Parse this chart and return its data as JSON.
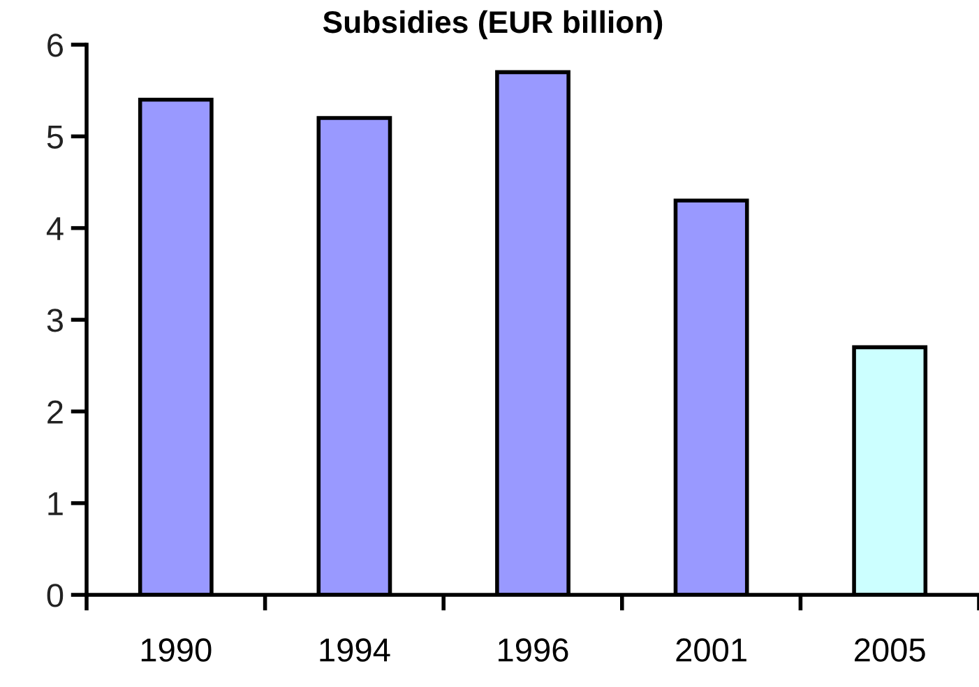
{
  "chart_data": {
    "type": "bar",
    "title": "Subsidies (EUR billion)",
    "categories": [
      "1990",
      "1994",
      "1996",
      "2001",
      "2005"
    ],
    "values": [
      5.4,
      5.2,
      5.7,
      4.3,
      2.7
    ],
    "colors": [
      "#9999ff",
      "#9999ff",
      "#9999ff",
      "#9999ff",
      "#ccffff"
    ],
    "ylim": [
      0,
      6
    ],
    "yticks": [
      0,
      1,
      2,
      3,
      4,
      5,
      6
    ],
    "grid": false,
    "legend": false
  }
}
